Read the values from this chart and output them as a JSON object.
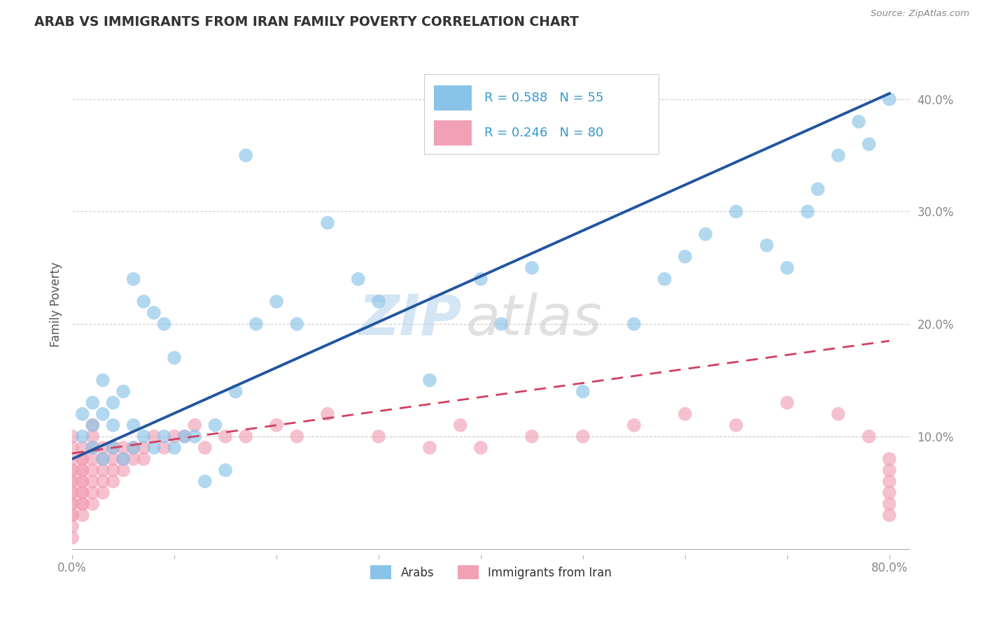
{
  "title": "ARAB VS IMMIGRANTS FROM IRAN FAMILY POVERTY CORRELATION CHART",
  "source": "Source: ZipAtlas.com",
  "ylabel": "Family Poverty",
  "xlim": [
    0.0,
    0.82
  ],
  "ylim": [
    -0.005,
    0.44
  ],
  "xticks": [
    0.0,
    0.1,
    0.2,
    0.3,
    0.4,
    0.5,
    0.6,
    0.7,
    0.8
  ],
  "xticklabels": [
    "0.0%",
    "",
    "",
    "",
    "",
    "",
    "",
    "",
    "80.0%"
  ],
  "yticks": [
    0.0,
    0.1,
    0.2,
    0.3,
    0.4
  ],
  "yticklabels": [
    "",
    "10.0%",
    "20.0%",
    "30.0%",
    "40.0%"
  ],
  "legend_r1": "R = 0.588",
  "legend_n1": "N = 55",
  "legend_r2": "R = 0.246",
  "legend_n2": "N = 80",
  "legend_label1": "Arabs",
  "legend_label2": "Immigrants from Iran",
  "color_arab": "#89C4E8",
  "color_iran": "#F2A0B5",
  "color_arab_line": "#2255A0",
  "color_iran_line": "#D04060",
  "watermark_zip": "ZIP",
  "watermark_atlas": "atlas",
  "background_color": "#FFFFFF",
  "grid_color": "#CCCCCC",
  "arab_x": [
    0.01,
    0.01,
    0.02,
    0.02,
    0.02,
    0.03,
    0.03,
    0.03,
    0.04,
    0.04,
    0.04,
    0.05,
    0.05,
    0.06,
    0.06,
    0.06,
    0.07,
    0.07,
    0.08,
    0.08,
    0.09,
    0.09,
    0.1,
    0.1,
    0.11,
    0.12,
    0.13,
    0.14,
    0.15,
    0.16,
    0.17,
    0.18,
    0.2,
    0.22,
    0.25,
    0.28,
    0.3,
    0.35,
    0.4,
    0.42,
    0.45,
    0.5,
    0.55,
    0.58,
    0.6,
    0.62,
    0.65,
    0.68,
    0.7,
    0.72,
    0.73,
    0.75,
    0.77,
    0.78,
    0.8
  ],
  "arab_y": [
    0.1,
    0.12,
    0.09,
    0.11,
    0.13,
    0.08,
    0.12,
    0.15,
    0.09,
    0.11,
    0.13,
    0.08,
    0.14,
    0.09,
    0.11,
    0.24,
    0.1,
    0.22,
    0.09,
    0.21,
    0.1,
    0.2,
    0.09,
    0.17,
    0.1,
    0.1,
    0.06,
    0.11,
    0.07,
    0.14,
    0.35,
    0.2,
    0.22,
    0.2,
    0.29,
    0.24,
    0.22,
    0.15,
    0.24,
    0.2,
    0.25,
    0.14,
    0.2,
    0.24,
    0.26,
    0.28,
    0.3,
    0.27,
    0.25,
    0.3,
    0.32,
    0.35,
    0.38,
    0.36,
    0.4
  ],
  "iran_x": [
    0.0,
    0.0,
    0.0,
    0.0,
    0.0,
    0.0,
    0.0,
    0.0,
    0.0,
    0.0,
    0.0,
    0.0,
    0.0,
    0.0,
    0.0,
    0.01,
    0.01,
    0.01,
    0.01,
    0.01,
    0.01,
    0.01,
    0.01,
    0.01,
    0.01,
    0.01,
    0.01,
    0.02,
    0.02,
    0.02,
    0.02,
    0.02,
    0.02,
    0.02,
    0.02,
    0.03,
    0.03,
    0.03,
    0.03,
    0.03,
    0.04,
    0.04,
    0.04,
    0.04,
    0.05,
    0.05,
    0.05,
    0.06,
    0.06,
    0.07,
    0.07,
    0.08,
    0.09,
    0.1,
    0.11,
    0.12,
    0.13,
    0.15,
    0.17,
    0.2,
    0.22,
    0.25,
    0.3,
    0.35,
    0.38,
    0.4,
    0.45,
    0.5,
    0.55,
    0.6,
    0.65,
    0.7,
    0.75,
    0.78,
    0.8,
    0.8,
    0.8,
    0.8,
    0.8,
    0.8
  ],
  "iran_y": [
    0.03,
    0.04,
    0.05,
    0.06,
    0.07,
    0.08,
    0.09,
    0.1,
    0.03,
    0.04,
    0.05,
    0.06,
    0.07,
    0.02,
    0.01,
    0.04,
    0.05,
    0.06,
    0.07,
    0.08,
    0.09,
    0.04,
    0.03,
    0.05,
    0.06,
    0.07,
    0.08,
    0.04,
    0.05,
    0.06,
    0.07,
    0.08,
    0.09,
    0.1,
    0.11,
    0.05,
    0.06,
    0.07,
    0.08,
    0.09,
    0.06,
    0.07,
    0.08,
    0.09,
    0.07,
    0.08,
    0.09,
    0.08,
    0.09,
    0.08,
    0.09,
    0.1,
    0.09,
    0.1,
    0.1,
    0.11,
    0.09,
    0.1,
    0.1,
    0.11,
    0.1,
    0.12,
    0.1,
    0.09,
    0.11,
    0.09,
    0.1,
    0.1,
    0.11,
    0.12,
    0.11,
    0.13,
    0.12,
    0.1,
    0.07,
    0.06,
    0.05,
    0.08,
    0.04,
    0.03
  ]
}
